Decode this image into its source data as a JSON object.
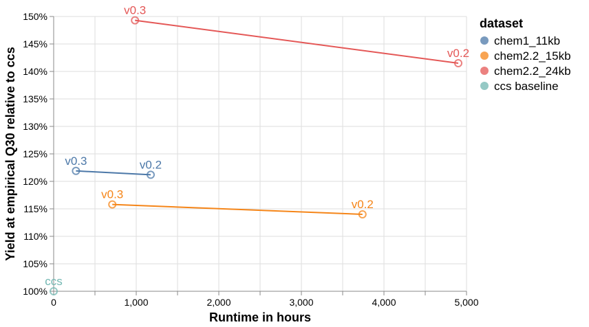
{
  "chart_data": {
    "type": "line",
    "xlabel": "Runtime in hours",
    "ylabel": "Yield at empirical Q30 relative to ccs",
    "xlim": [
      0,
      5000
    ],
    "ylim": [
      1.0,
      1.5
    ],
    "x_ticks": [
      0,
      1000,
      2000,
      3000,
      4000,
      5000
    ],
    "x_tick_labels": [
      "0",
      "1,000",
      "2,000",
      "3,000",
      "4,000",
      "5,000"
    ],
    "y_ticks": [
      1.0,
      1.05,
      1.1,
      1.15,
      1.2,
      1.25,
      1.3,
      1.35,
      1.4,
      1.45,
      1.5
    ],
    "y_tick_labels": [
      "100%",
      "105%",
      "110%",
      "115%",
      "120%",
      "125%",
      "130%",
      "135%",
      "140%",
      "145%",
      "150%"
    ],
    "grid": true,
    "legend": {
      "title": "dataset",
      "position": "right"
    },
    "series": [
      {
        "name": "chem1_11kb",
        "color": "#4c78a8",
        "points": [
          {
            "x": 270,
            "y": 1.219,
            "label": "v0.3"
          },
          {
            "x": 1175,
            "y": 1.212,
            "label": "v0.2"
          }
        ]
      },
      {
        "name": "chem2.2_15kb",
        "color": "#f58518",
        "points": [
          {
            "x": 710,
            "y": 1.158,
            "label": "v0.3"
          },
          {
            "x": 3740,
            "y": 1.14,
            "label": "v0.2"
          }
        ]
      },
      {
        "name": "chem2.2_24kb",
        "color": "#e45756",
        "points": [
          {
            "x": 985,
            "y": 1.493,
            "label": "v0.3"
          },
          {
            "x": 4900,
            "y": 1.415,
            "label": "v0.2"
          }
        ]
      },
      {
        "name": "ccs baseline",
        "color": "#72b7b2",
        "points": [
          {
            "x": 0,
            "y": 1.0,
            "label": "ccs"
          }
        ]
      }
    ]
  }
}
